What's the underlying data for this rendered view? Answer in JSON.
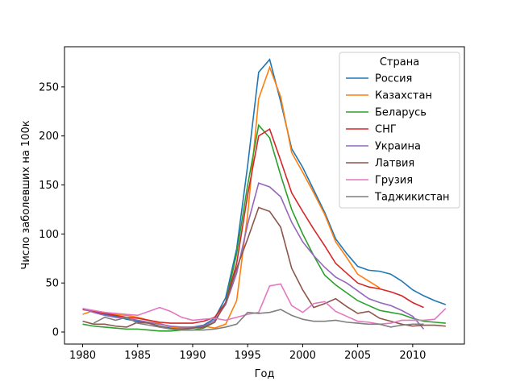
{
  "chart_data": {
    "type": "line",
    "x_label": "Год",
    "y_label": "Число заболевших на 100к",
    "x": [
      1980,
      1981,
      1982,
      1983,
      1984,
      1985,
      1986,
      1987,
      1988,
      1989,
      1990,
      1991,
      1992,
      1993,
      1994,
      1995,
      1996,
      1997,
      1998,
      1999,
      2000,
      2001,
      2002,
      2003,
      2004,
      2005,
      2006,
      2007,
      2008,
      2009,
      2010,
      2011,
      2012,
      2013
    ],
    "xlim": [
      1978.35,
      2014.7
    ],
    "xticks": [
      1980,
      1985,
      1990,
      1995,
      2000,
      2005,
      2010
    ],
    "ylim": [
      -12.3,
      291
    ],
    "yticks": [
      0,
      50,
      100,
      150,
      200,
      250
    ],
    "legend_title": "Страна",
    "legend_position": "upper right",
    "series": [
      {
        "name": "Россия",
        "color": "#1f77b4",
        "values": [
          23,
          21,
          18,
          16,
          13,
          11,
          9,
          6,
          4,
          4,
          5,
          7,
          14,
          35,
          85,
          170,
          265,
          278,
          235,
          187,
          168,
          145,
          122,
          95,
          80,
          67,
          63,
          62,
          59,
          52,
          43,
          37,
          32,
          28
        ]
      },
      {
        "name": "Казахстан",
        "color": "#ff7f0e",
        "values": [
          18,
          22,
          20,
          18,
          17,
          15,
          12,
          9,
          5,
          4,
          4,
          6,
          4,
          8,
          32,
          120,
          238,
          270,
          240,
          183,
          163,
          142,
          120,
          92,
          76,
          59,
          52,
          45,
          null,
          null,
          null,
          null,
          null,
          null
        ]
      },
      {
        "name": "Беларусь",
        "color": "#2ca02c",
        "values": [
          8,
          6,
          5,
          4,
          3,
          3,
          2,
          1,
          1,
          2,
          2,
          4,
          10,
          30,
          80,
          150,
          211,
          198,
          160,
          125,
          100,
          78,
          58,
          48,
          40,
          32,
          27,
          22,
          20,
          18,
          14,
          11,
          10,
          9
        ]
      },
      {
        "name": "СНГ",
        "color": "#d62728",
        "values": [
          23,
          21,
          19,
          17,
          15,
          14,
          12,
          10,
          9,
          9,
          9,
          11,
          15,
          30,
          70,
          140,
          200,
          207,
          175,
          142,
          123,
          105,
          88,
          70,
          60,
          50,
          46,
          44,
          41,
          37,
          30,
          25,
          null,
          null
        ]
      },
      {
        "name": "Украина",
        "color": "#9467bd",
        "values": [
          24,
          20,
          17,
          15,
          14,
          12,
          10,
          8,
          6,
          5,
          5,
          6,
          12,
          28,
          60,
          110,
          152,
          148,
          138,
          112,
          92,
          78,
          66,
          56,
          50,
          42,
          34,
          30,
          27,
          22,
          16,
          3,
          null,
          null
        ]
      },
      {
        "name": "Латвия",
        "color": "#8c564b",
        "values": [
          11,
          8,
          8,
          6,
          5,
          10,
          9,
          6,
          3,
          3,
          4,
          5,
          10,
          30,
          65,
          95,
          127,
          123,
          107,
          65,
          43,
          25,
          29,
          34,
          26,
          19,
          21,
          14,
          11,
          8,
          6,
          7,
          7,
          6
        ]
      },
      {
        "name": "Грузия",
        "color": "#e377c2",
        "values": [
          24,
          22,
          20,
          19,
          18,
          17,
          21,
          25,
          21,
          15,
          12,
          13,
          14,
          12,
          15,
          18,
          20,
          47,
          49,
          27,
          20,
          29,
          31,
          21,
          16,
          11,
          10,
          8,
          9,
          12,
          12,
          12,
          13,
          24
        ]
      },
      {
        "name": "Таджикистан",
        "color": "#7f7f7f",
        "values": [
          null,
          9,
          15,
          12,
          15,
          9,
          7,
          5,
          3,
          2,
          2,
          2,
          3,
          5,
          8,
          20,
          19,
          20,
          23,
          17,
          13,
          11,
          11,
          12,
          10,
          9,
          8,
          8,
          5,
          7,
          8,
          8,
          null,
          null
        ]
      }
    ]
  }
}
